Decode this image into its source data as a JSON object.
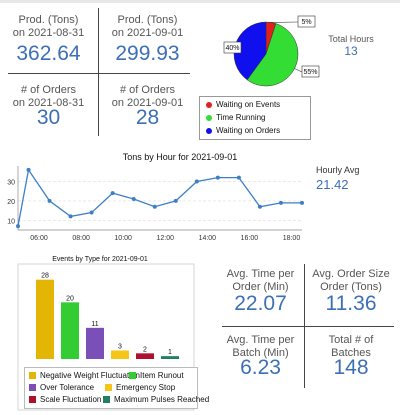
{
  "kpis_top": {
    "prod_a": {
      "label1": "Prod. (Tons)",
      "label2": "on 2021-08-31",
      "value": "362.64"
    },
    "prod_b": {
      "label1": "Prod. (Tons)",
      "label2": "on 2021-09-01",
      "value": "299.93"
    },
    "orders_a": {
      "label1": "# of Orders",
      "label2": "on 2021-08-31",
      "value": "30"
    },
    "orders_b": {
      "label1": "# of Orders",
      "label2": "on 2021-09-01",
      "value": "28"
    }
  },
  "total_hours": {
    "label": "Total Hours",
    "value": "13"
  },
  "hourly_avg": {
    "label": "Hourly Avg",
    "value": "21.42"
  },
  "kpis_bottom": {
    "avg_order_time": {
      "label1": "Avg. Time per",
      "label2": "Order (Min)",
      "value": "22.07"
    },
    "avg_order_size": {
      "label1": "Avg. Order Size",
      "label2": "Order (Tons)",
      "value": "11.36"
    },
    "avg_batch_time": {
      "label1": "Avg. Time per",
      "label2": "Batch (Min)",
      "value": "6.23"
    },
    "total_batches": {
      "label1": "Total # of",
      "label2": "Batches",
      "value": "148"
    }
  },
  "chart_data": [
    {
      "type": "pie",
      "categories": [
        "Waiting on Events",
        "Time Running",
        "Waiting on Orders"
      ],
      "values": [
        5,
        55,
        40
      ],
      "slice_labels": [
        "5%",
        "55%",
        "40%"
      ],
      "colors": [
        "#e02020",
        "#33dd33",
        "#1010ee"
      ]
    },
    {
      "type": "line",
      "title": "Tons by Hour for 2021-09-01",
      "x": [
        "05:00",
        "05:30",
        "06:30",
        "07:30",
        "08:30",
        "09:30",
        "10:30",
        "11:30",
        "12:30",
        "13:30",
        "14:30",
        "15:30",
        "16:30",
        "17:30",
        "18:30"
      ],
      "values": [
        7,
        36,
        20,
        12,
        14,
        24,
        21,
        17,
        20,
        30,
        32,
        32,
        17,
        19,
        19
      ],
      "x_ticks": [
        "06:00",
        "08:00",
        "10:00",
        "12:00",
        "14:00",
        "16:00",
        "18:00"
      ],
      "y_ticks": [
        "10",
        "20",
        "30"
      ],
      "ylim": [
        5,
        38
      ],
      "color": "#3d7fc4"
    },
    {
      "type": "bar",
      "title": "Events by Type for 2021-09-01",
      "categories": [
        "Negative Weight Fluctuation",
        "Item Runout",
        "Over Tolerance",
        "Emergency Stop",
        "Scale Fluctuation",
        "Maximum Pulses Reached"
      ],
      "values": [
        28,
        20,
        11,
        3,
        2,
        1
      ],
      "colors": [
        "#e3b505",
        "#33cc33",
        "#7b4fb8",
        "#f5c518",
        "#b01030",
        "#208060"
      ],
      "ylim": [
        0,
        30
      ]
    }
  ]
}
